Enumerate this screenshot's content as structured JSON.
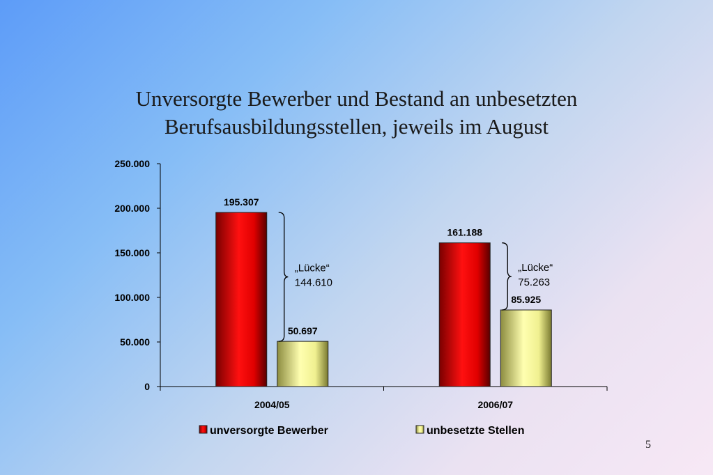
{
  "title_lines": [
    "Unversorgte Bewerber und Bestand an unbesetzten",
    "Berufsausbildungsstellen, jeweils im August"
  ],
  "page_number": "5",
  "colors": {
    "series1": "#e8000a",
    "series2": "#f2f28c"
  },
  "chart_data": {
    "type": "bar",
    "title": "Unversorgte Bewerber und Bestand an unbesetzten Berufsausbildungsstellen, jeweils im August",
    "categories": [
      "2004/05",
      "2006/07"
    ],
    "series": [
      {
        "name": "unversorgte Bewerber",
        "values": [
          195307,
          161188
        ],
        "labels": [
          "195.307",
          "161.188"
        ]
      },
      {
        "name": "unbesetzte Stellen",
        "values": [
          50697,
          85925
        ],
        "labels": [
          "50.697",
          "85.925"
        ]
      }
    ],
    "ylim": [
      0,
      250000
    ],
    "yticks": [
      0,
      50000,
      100000,
      150000,
      200000,
      250000
    ],
    "ytick_labels": [
      "0",
      "50.000",
      "100.000",
      "150.000",
      "200.000",
      "250.000"
    ],
    "legend_position": "bottom",
    "annotations": [
      {
        "category": "2004/05",
        "line1": "„Lücke“",
        "line2": "144.610"
      },
      {
        "category": "2006/07",
        "line1": "„Lücke“",
        "line2": "75.263"
      }
    ]
  }
}
